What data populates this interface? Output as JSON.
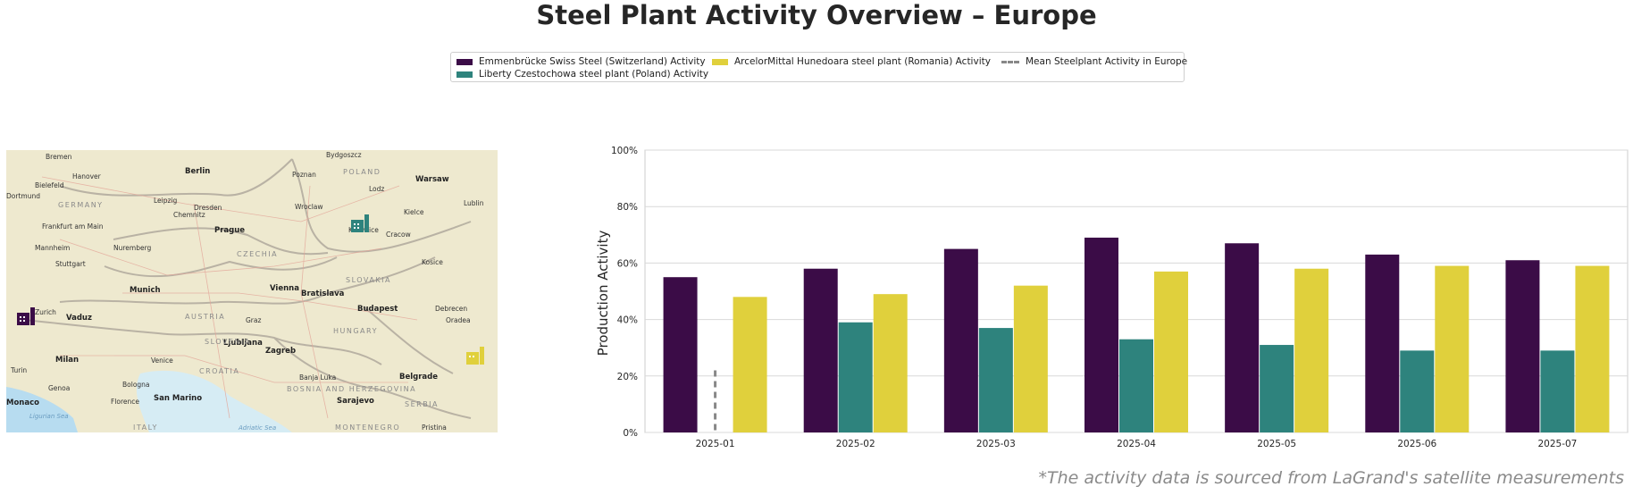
{
  "title": "Steel Plant Activity Overview – Europe",
  "footnote": "*The activity data is sourced from LaGrand's satellite measurements",
  "colors": {
    "switzerland": "#3b0c47",
    "poland": "#2e837d",
    "romania": "#e0d03c",
    "mean": "#888888"
  },
  "legend": [
    {
      "label": "Emmenbrücke Swiss Steel (Switzerland) Activity",
      "color": "#3b0c47",
      "kind": "patch"
    },
    {
      "label": "Liberty Czestochowa steel plant (Poland) Activity",
      "color": "#2e837d",
      "kind": "patch"
    },
    {
      "label": "ArcelorMittal Hunedoara steel plant (Romania) Activity",
      "color": "#e0d03c",
      "kind": "patch"
    },
    {
      "label": "Mean Steelplant Activity in Europe",
      "color": "#888888",
      "kind": "dashed-line"
    }
  ],
  "map": {
    "plant_icons": [
      {
        "name": "switzerland-plant-icon",
        "color": "#3b0c47"
      },
      {
        "name": "poland-plant-icon",
        "color": "#2e837d"
      },
      {
        "name": "romania-plant-icon",
        "color": "#e0d03c"
      }
    ],
    "cities": [
      "Bremen",
      "Berlin",
      "Bydgoszcz",
      "Hanover",
      "Poznan",
      "Warsaw",
      "Bielefeld",
      "Dortmund",
      "Leipzig",
      "Lodz",
      "Dresden",
      "Wroclaw",
      "Lublin",
      "Chemnitz",
      "Frankfurt am Main",
      "Kielce",
      "Prague",
      "Katowice",
      "Cracow",
      "Mannheim",
      "Nuremberg",
      "Stuttgart",
      "Kosice",
      "Munich",
      "Vienna",
      "Bratislava",
      "Vaduz",
      "Zurich",
      "Debrecen",
      "Budapest",
      "Graz",
      "Oradea",
      "Ljubljana",
      "Zagreb",
      "Milan",
      "Venice",
      "Turin",
      "Banja Luka",
      "Belgrade",
      "Genoa",
      "Bologna",
      "San Marino",
      "Florence",
      "Sarajevo",
      "Monaco",
      "Pristina"
    ],
    "countries": [
      "GERMANY",
      "POLAND",
      "CZECHIA",
      "SLOVAKIA",
      "AUSTRIA",
      "HUNGARY",
      "SLOVENIA",
      "CROATIA",
      "BOSNIA AND HERZEGOVINA",
      "SERBIA",
      "ITALY",
      "MONTENEGRO"
    ],
    "seas": [
      "Ligurian Sea",
      "Adriatic Sea"
    ]
  },
  "chart_data": {
    "type": "bar",
    "title": "",
    "xlabel": "",
    "ylabel": "Production Activity",
    "ylim": [
      0,
      100
    ],
    "yticks": [
      "0%",
      "20%",
      "40%",
      "60%",
      "80%",
      "100%"
    ],
    "categories": [
      "2025-01",
      "2025-02",
      "2025-03",
      "2025-04",
      "2025-05",
      "2025-06",
      "2025-07"
    ],
    "series": [
      {
        "name": "Emmenbrücke Swiss Steel (Switzerland) Activity",
        "values": [
          55,
          58,
          65,
          69,
          67,
          63,
          61
        ]
      },
      {
        "name": "Liberty Czestochowa steel plant (Poland) Activity",
        "values": [
          null,
          39,
          37,
          33,
          31,
          29,
          29
        ]
      },
      {
        "name": "ArcelorMittal Hunedoara steel plant (Romania) Activity",
        "values": [
          48,
          49,
          52,
          57,
          58,
          59,
          59
        ]
      }
    ],
    "mean_line": {
      "name": "Mean Steelplant Activity in Europe",
      "category": "2025-01",
      "value": 22
    },
    "grid": "horizontal",
    "legend_position": "top-center"
  }
}
